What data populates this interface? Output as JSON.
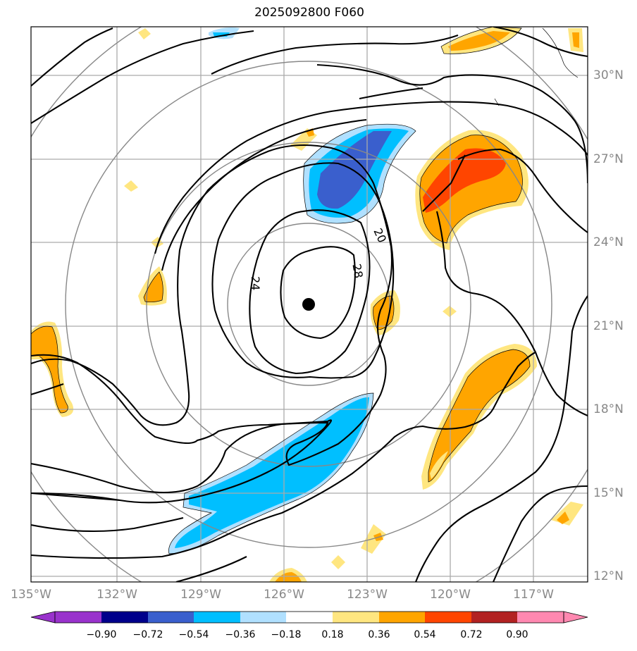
{
  "title": "2025092800 F060",
  "lon_labels": [
    "135°W",
    "132°W",
    "129°W",
    "126°W",
    "123°W",
    "120°W",
    "117°W"
  ],
  "lat_labels": [
    "30°N",
    "27°N",
    "24°N",
    "21°N",
    "18°N",
    "15°N",
    "12°N"
  ],
  "contour_labels": [
    "20",
    "28",
    "24"
  ],
  "colorbar": {
    "labels": [
      "−0.90",
      "−0.72",
      "−0.54",
      "−0.36",
      "−0.18",
      "0.18",
      "0.36",
      "0.54",
      "0.72",
      "0.90"
    ],
    "colors": [
      "#9932cc",
      "#00008b",
      "#3a5fcd",
      "#00bfff",
      "#b0e0ff",
      "#ffffff",
      "#ffe680",
      "#ffa500",
      "#ff4500",
      "#b22222",
      "#ff88b0"
    ]
  },
  "colors": {
    "grid": "#aaaaaa",
    "range_rings": "#888888",
    "contour": "#000000"
  }
}
